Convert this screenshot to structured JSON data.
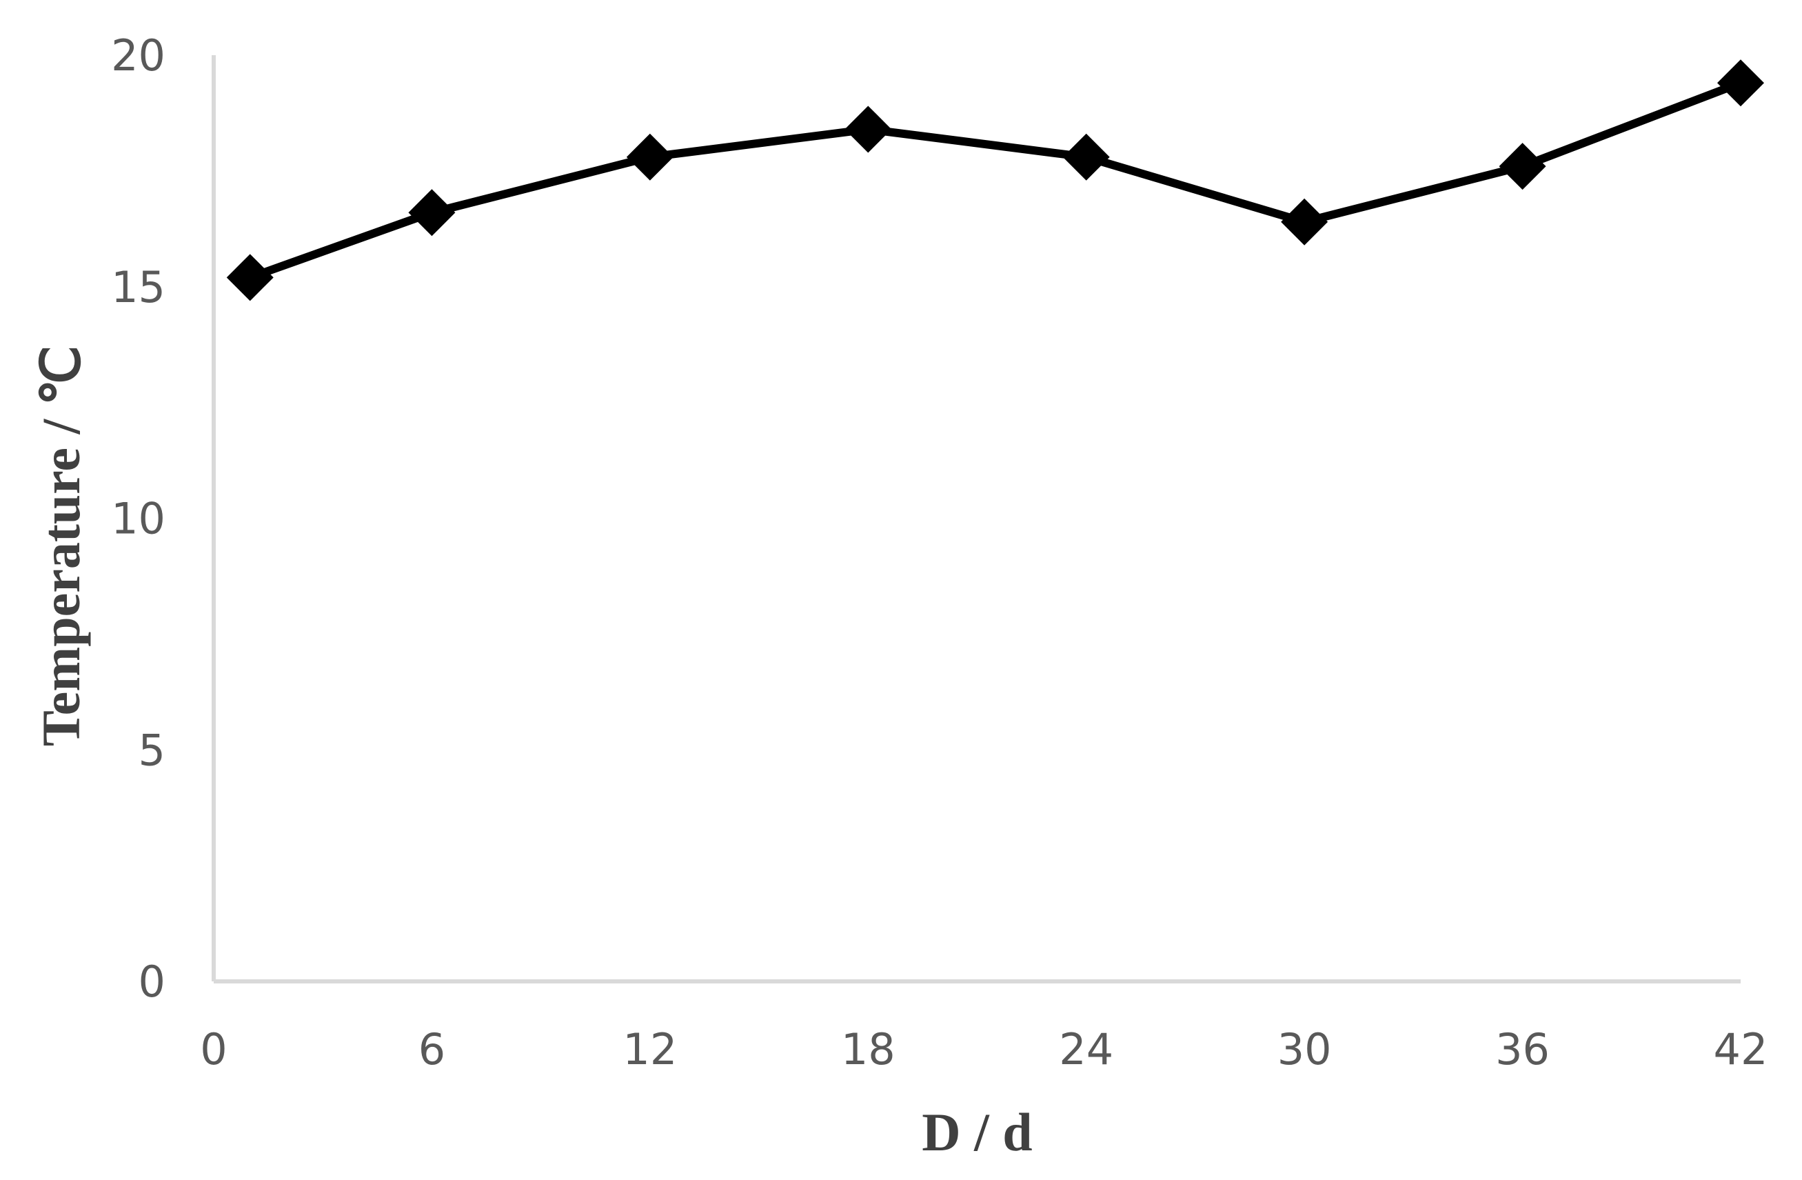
{
  "chart_data": {
    "type": "line",
    "title": "",
    "xlabel": "D / d",
    "ylabel": "Temperature / ℃",
    "x_ticks": [
      "0",
      "6",
      "12",
      "18",
      "24",
      "30",
      "36",
      "42"
    ],
    "y_ticks": [
      "0",
      "5",
      "10",
      "15",
      "20"
    ],
    "xlim": [
      0,
      42
    ],
    "ylim": [
      0,
      20
    ],
    "grid": false,
    "legend": "none",
    "series": [
      {
        "color": "#000000",
        "marker": "diamond",
        "x": [
          1,
          6,
          12,
          18,
          24,
          30,
          36,
          42
        ],
        "y": [
          15.2,
          16.6,
          17.8,
          18.4,
          17.8,
          16.4,
          17.6,
          19.4
        ]
      }
    ]
  }
}
